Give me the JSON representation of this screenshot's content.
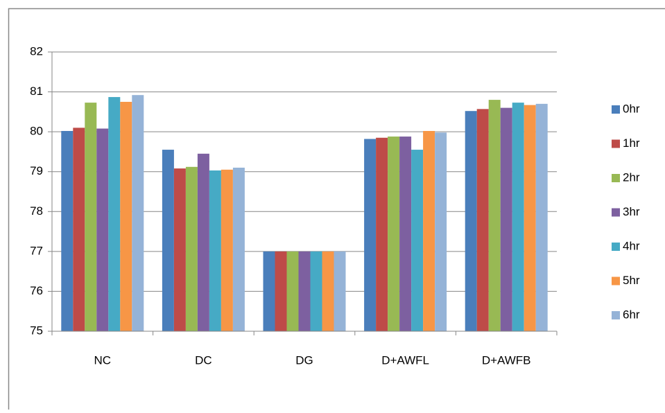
{
  "chart_data": {
    "type": "bar",
    "categories": [
      "NC",
      "DC",
      "DG",
      "D+AWFL",
      "D+AWFB"
    ],
    "series": [
      {
        "name": "0hr",
        "color": "#4a7ebb",
        "values": [
          80.02,
          79.55,
          77,
          79.82,
          80.52
        ]
      },
      {
        "name": "1hr",
        "color": "#be4b48",
        "values": [
          80.1,
          79.08,
          77,
          79.85,
          80.57
        ]
      },
      {
        "name": "2hr",
        "color": "#98b954",
        "values": [
          80.73,
          79.12,
          77,
          79.88,
          80.8
        ]
      },
      {
        "name": "3hr",
        "color": "#7d60a0",
        "values": [
          80.08,
          79.45,
          77,
          79.88,
          80.6
        ]
      },
      {
        "name": "4hr",
        "color": "#46aac5",
        "values": [
          80.87,
          79.03,
          77,
          79.55,
          80.73
        ]
      },
      {
        "name": "5hr",
        "color": "#f79646",
        "values": [
          80.75,
          79.05,
          77,
          80.02,
          80.67
        ]
      },
      {
        "name": "6hr",
        "color": "#95b3d7",
        "values": [
          80.92,
          79.1,
          77,
          79.98,
          80.7
        ]
      }
    ],
    "ylim": [
      75,
      82
    ],
    "yticks": [
      75,
      76,
      77,
      78,
      79,
      80,
      81,
      82
    ],
    "grid": true,
    "legend": "right"
  }
}
